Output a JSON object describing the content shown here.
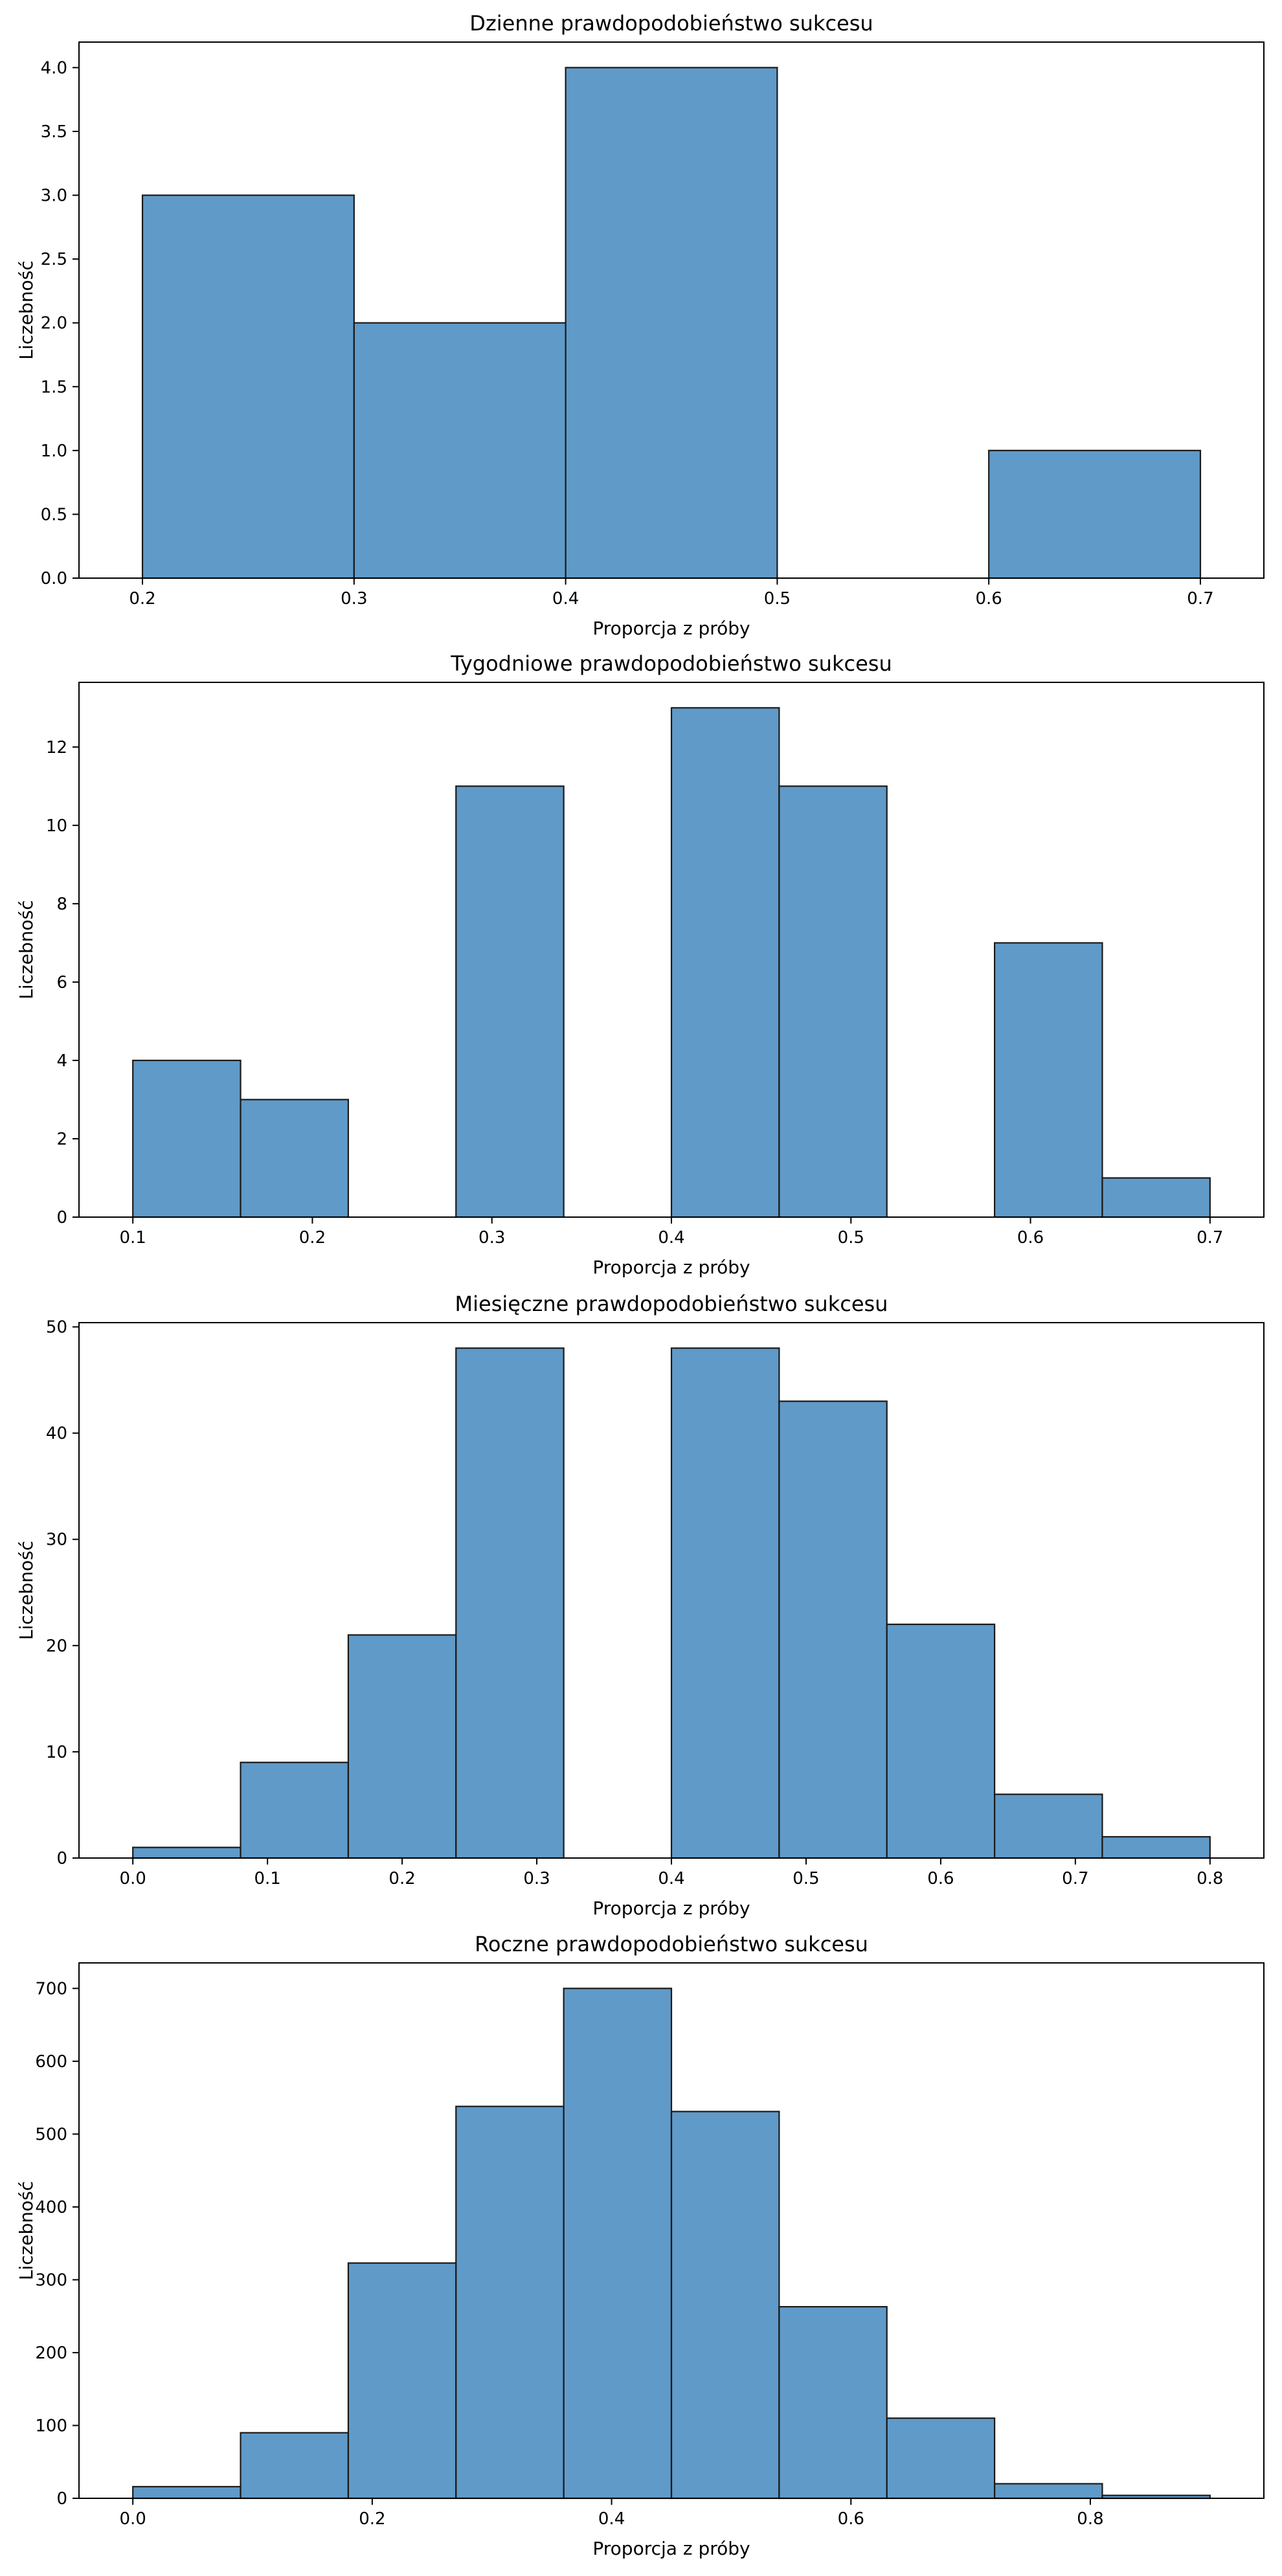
{
  "charts": [
    {
      "type": "bar",
      "title": "Dzienne prawdopodobieństwo sukcesu",
      "xlabel": "Proporcja z próby",
      "ylabel": "Liczebność",
      "xlim": [
        0.17,
        0.73
      ],
      "ylim": [
        0,
        4.2
      ],
      "xticks": [
        0.2,
        0.3,
        0.4,
        0.5,
        0.6,
        0.7
      ],
      "xtick_labels": [
        "0.2",
        "0.3",
        "0.4",
        "0.5",
        "0.6",
        "0.7"
      ],
      "yticks": [
        0,
        0.5,
        1,
        1.5,
        2,
        2.5,
        3,
        3.5,
        4
      ],
      "ytick_labels": [
        "0.0",
        "0.5",
        "1.0",
        "1.5",
        "2.0",
        "2.5",
        "3.0",
        "3.5",
        "4.0"
      ],
      "bins": [
        {
          "start": 0.2,
          "end": 0.3,
          "count": 3
        },
        {
          "start": 0.3,
          "end": 0.4,
          "count": 2
        },
        {
          "start": 0.4,
          "end": 0.5,
          "count": 4
        },
        {
          "start": 0.5,
          "end": 0.6,
          "count": 0
        },
        {
          "start": 0.6,
          "end": 0.7,
          "count": 1
        }
      ]
    },
    {
      "type": "bar",
      "title": "Tygodniowe prawdopodobieństwo sukcesu",
      "xlabel": "Proporcja z próby",
      "ylabel": "Liczebność",
      "xlim": [
        0.07,
        0.73
      ],
      "ylim": [
        0,
        13.65
      ],
      "xticks": [
        0.1,
        0.2,
        0.3,
        0.4,
        0.5,
        0.6,
        0.7
      ],
      "xtick_labels": [
        "0.1",
        "0.2",
        "0.3",
        "0.4",
        "0.5",
        "0.6",
        "0.7"
      ],
      "yticks": [
        0,
        2,
        4,
        6,
        8,
        10,
        12
      ],
      "ytick_labels": [
        "0",
        "2",
        "4",
        "6",
        "8",
        "10",
        "12"
      ],
      "bins": [
        {
          "start": 0.1,
          "end": 0.16,
          "count": 4
        },
        {
          "start": 0.16,
          "end": 0.22,
          "count": 3
        },
        {
          "start": 0.22,
          "end": 0.28,
          "count": 0
        },
        {
          "start": 0.28,
          "end": 0.34,
          "count": 11
        },
        {
          "start": 0.34,
          "end": 0.4,
          "count": 0
        },
        {
          "start": 0.4,
          "end": 0.46,
          "count": 13
        },
        {
          "start": 0.46,
          "end": 0.52,
          "count": 11
        },
        {
          "start": 0.52,
          "end": 0.58,
          "count": 0
        },
        {
          "start": 0.58,
          "end": 0.64,
          "count": 7
        },
        {
          "start": 0.64,
          "end": 0.7,
          "count": 1
        }
      ]
    },
    {
      "type": "bar",
      "title": "Miesięczne prawdopodobieństwo sukcesu",
      "xlabel": "Proporcja z próby",
      "ylabel": "Liczebność",
      "xlim": [
        -0.04,
        0.84
      ],
      "ylim": [
        0,
        50.4
      ],
      "xticks": [
        0,
        0.1,
        0.2,
        0.3,
        0.4,
        0.5,
        0.6,
        0.7,
        0.8
      ],
      "xtick_labels": [
        "0.0",
        "0.1",
        "0.2",
        "0.3",
        "0.4",
        "0.5",
        "0.6",
        "0.7",
        "0.8"
      ],
      "yticks": [
        0,
        10,
        20,
        30,
        40,
        50
      ],
      "ytick_labels": [
        "0",
        "10",
        "20",
        "30",
        "40",
        "50"
      ],
      "bins": [
        {
          "start": 0.0,
          "end": 0.08,
          "count": 1
        },
        {
          "start": 0.08,
          "end": 0.16,
          "count": 9
        },
        {
          "start": 0.16,
          "end": 0.24,
          "count": 21
        },
        {
          "start": 0.24,
          "end": 0.32,
          "count": 48
        },
        {
          "start": 0.32,
          "end": 0.4,
          "count": 0
        },
        {
          "start": 0.4,
          "end": 0.48,
          "count": 48
        },
        {
          "start": 0.48,
          "end": 0.56,
          "count": 43
        },
        {
          "start": 0.56,
          "end": 0.64,
          "count": 22
        },
        {
          "start": 0.64,
          "end": 0.72,
          "count": 6
        },
        {
          "start": 0.72,
          "end": 0.8,
          "count": 2
        }
      ]
    },
    {
      "type": "bar",
      "title": "Roczne prawdopodobieństwo sukcesu",
      "xlabel": "Proporcja z próby",
      "ylabel": "Liczebność",
      "xlim": [
        -0.045,
        0.945
      ],
      "ylim": [
        0,
        735
      ],
      "xticks": [
        0,
        0.2,
        0.4,
        0.6,
        0.8
      ],
      "xtick_labels": [
        "0.0",
        "0.2",
        "0.4",
        "0.6",
        "0.8"
      ],
      "yticks": [
        0,
        100,
        200,
        300,
        400,
        500,
        600,
        700
      ],
      "ytick_labels": [
        "0",
        "100",
        "200",
        "300",
        "400",
        "500",
        "600",
        "700"
      ],
      "bins": [
        {
          "start": 0.0,
          "end": 0.09,
          "count": 16
        },
        {
          "start": 0.09,
          "end": 0.18,
          "count": 90
        },
        {
          "start": 0.18,
          "end": 0.27,
          "count": 323
        },
        {
          "start": 0.27,
          "end": 0.36,
          "count": 538
        },
        {
          "start": 0.36,
          "end": 0.45,
          "count": 700
        },
        {
          "start": 0.45,
          "end": 0.54,
          "count": 531
        },
        {
          "start": 0.54,
          "end": 0.63,
          "count": 263
        },
        {
          "start": 0.63,
          "end": 0.72,
          "count": 110
        },
        {
          "start": 0.72,
          "end": 0.81,
          "count": 20
        },
        {
          "start": 0.81,
          "end": 0.9,
          "count": 4
        }
      ]
    }
  ],
  "colors": {
    "bar_fill": "#4f8fc2",
    "bar_fill_opacity": 0.9,
    "bar_edge": "#1a1a1a",
    "axis": "#000000"
  }
}
